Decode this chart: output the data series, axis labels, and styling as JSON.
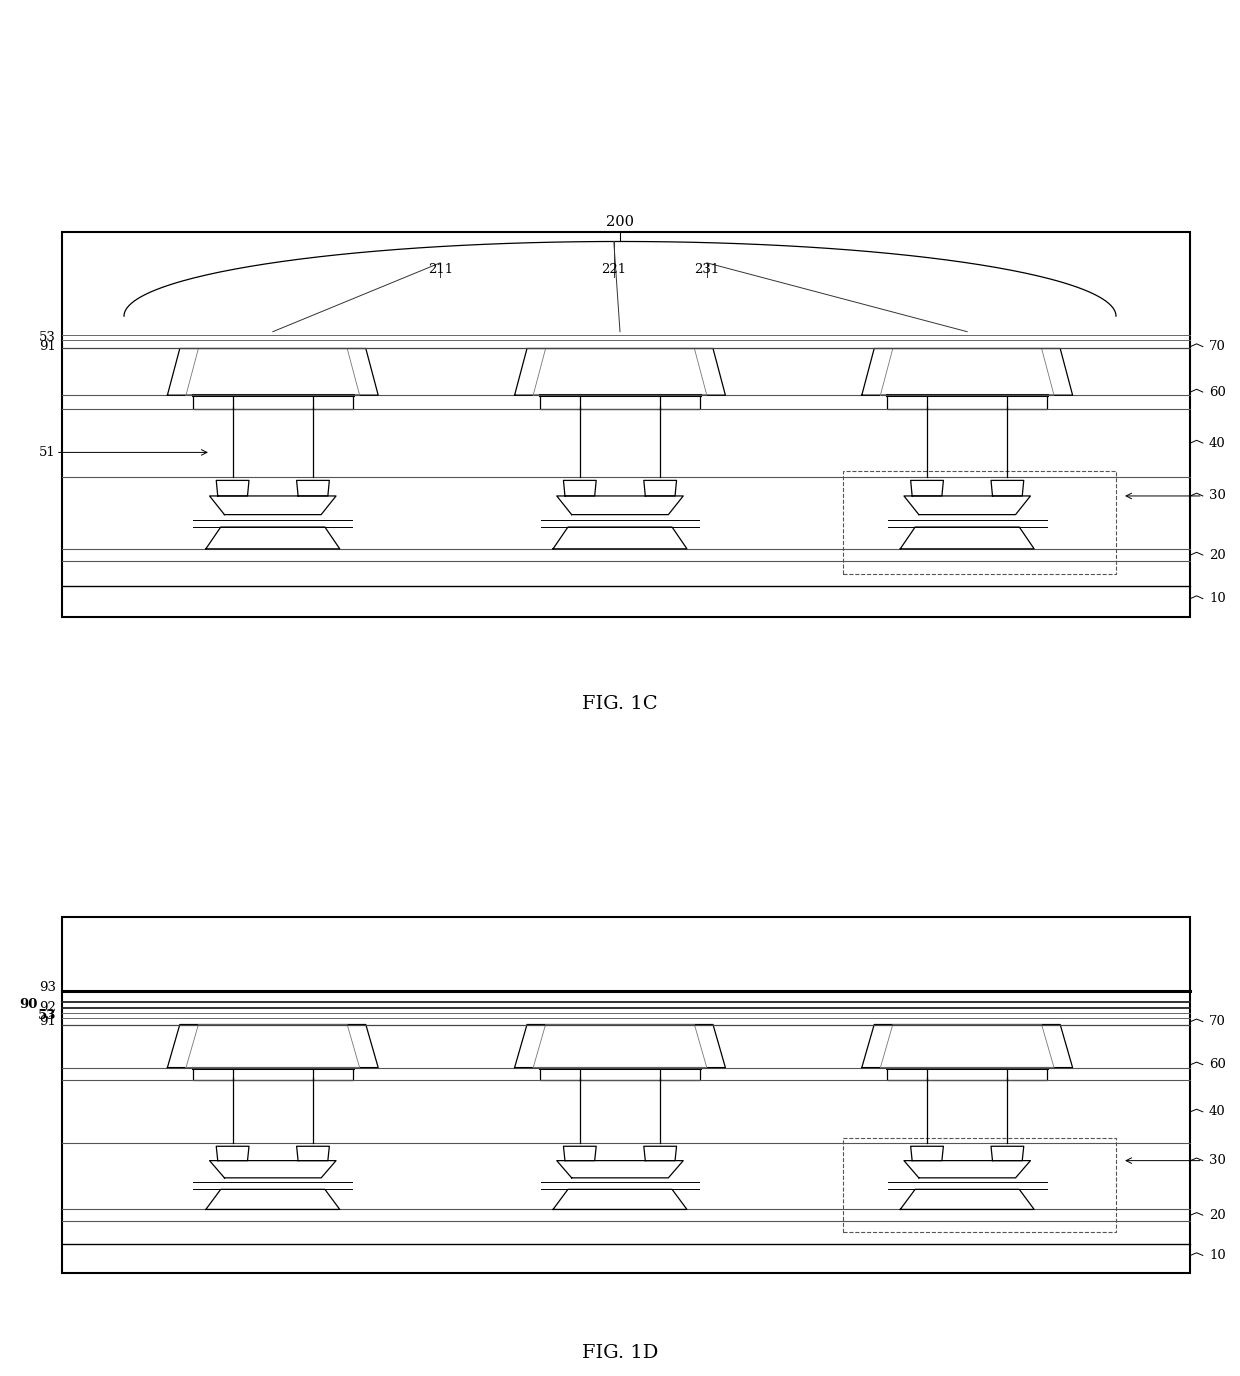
{
  "bg_color": "#ffffff",
  "line_color": "#000000",
  "gray_color": "#888888",
  "fig_width": 12.4,
  "fig_height": 13.76
}
